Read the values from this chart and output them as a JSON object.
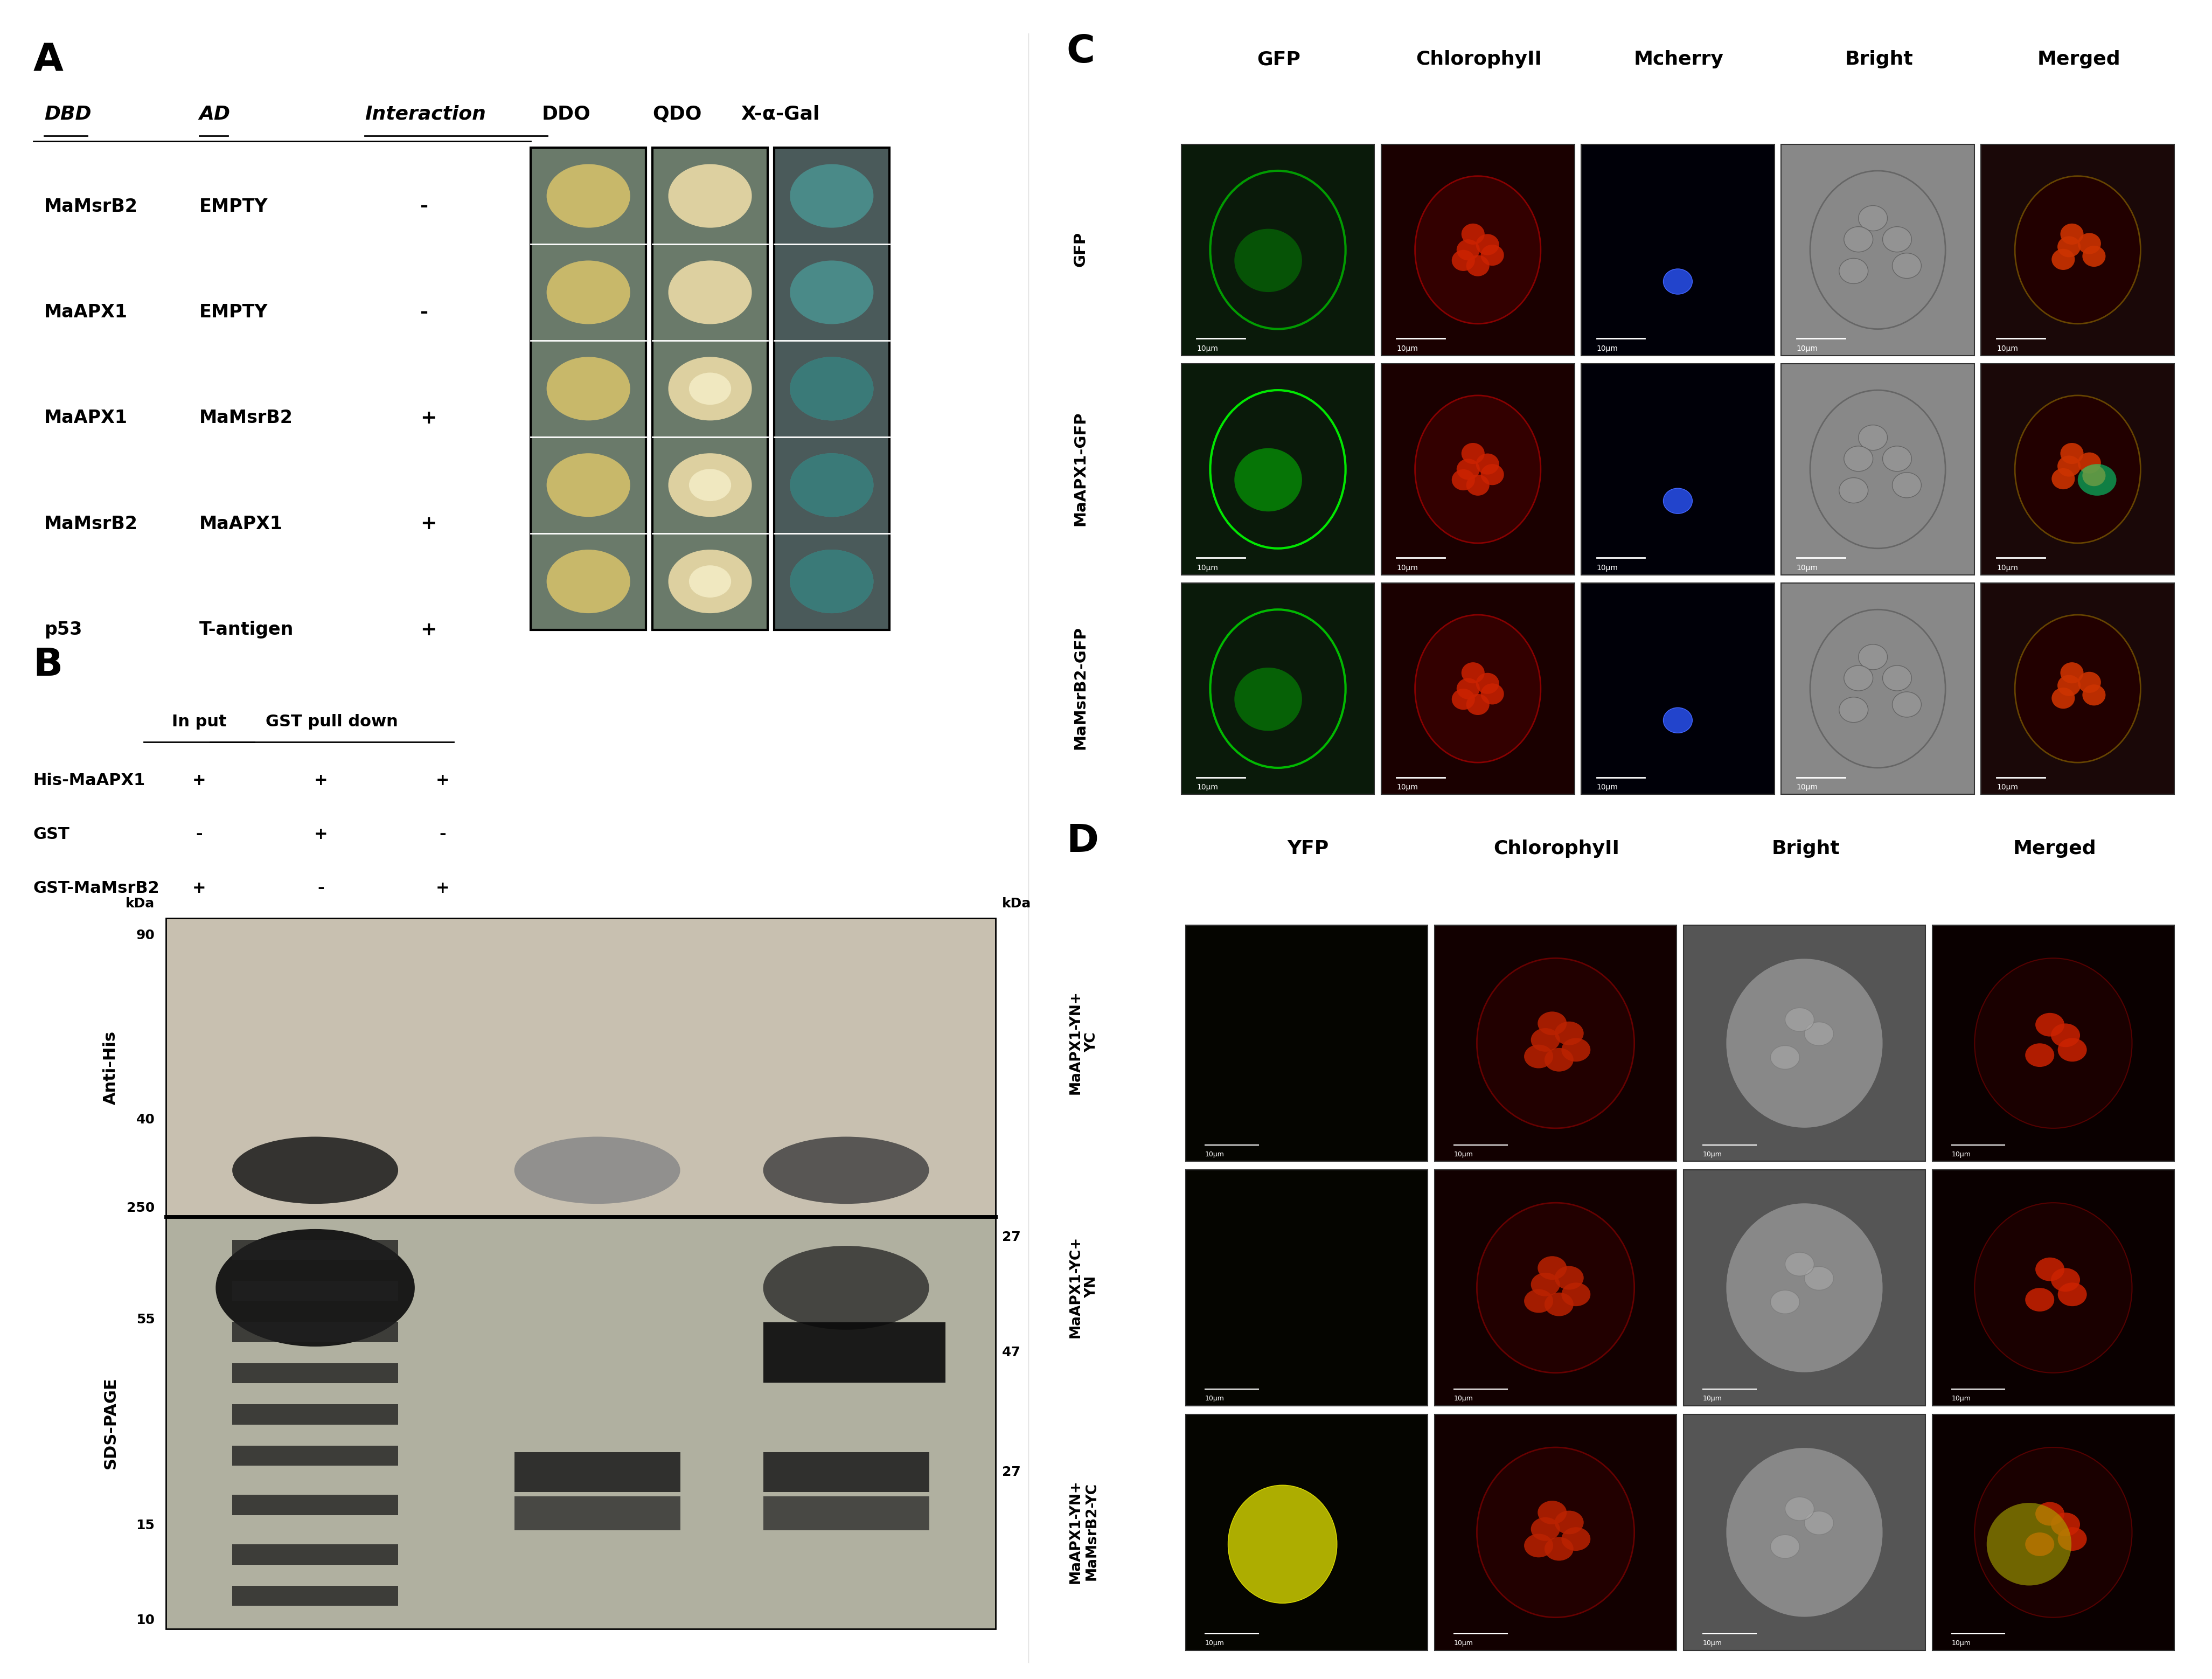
{
  "title_A": "A",
  "title_B": "B",
  "title_C": "C",
  "title_D": "D",
  "panel_A": {
    "header": [
      "DBD",
      "AD",
      "Interaction",
      "DDO",
      "QDO",
      "X-α-Gal"
    ],
    "rows": [
      [
        "MaMsrB2",
        "EMPTY",
        "-"
      ],
      [
        "MaAPX1",
        "EMPTY",
        "-"
      ],
      [
        "MaAPX1",
        "MaMsrB2",
        "+"
      ],
      [
        "MaMsrB2",
        "MaAPX1",
        "+"
      ],
      [
        "p53",
        "T-antigen",
        "+"
      ]
    ]
  },
  "panel_B": {
    "header_input": "In put",
    "header_gst": "GST pull down",
    "rows": [
      [
        "His-MaAPX1",
        "+",
        "+",
        "+"
      ],
      [
        "GST",
        "-",
        "+",
        "-"
      ],
      [
        "GST-MaMsrB2",
        "+",
        "-",
        "+"
      ]
    ],
    "labels_left": [
      "Anti-His",
      "SDS-PAGE"
    ],
    "kda_labels_left": [
      "90",
      "40",
      "250",
      "55",
      "15",
      "10"
    ],
    "kda_labels_right": [
      "27",
      "47",
      "27"
    ]
  },
  "panel_C": {
    "col_headers": [
      "GFP",
      "ChlorophyII",
      "Mcherry",
      "Bright",
      "Merged"
    ],
    "row_headers": [
      "GFP",
      "MaAPX1-GFP",
      "MaMsrB2-GFP"
    ]
  },
  "panel_D": {
    "col_headers": [
      "YFP",
      "ChlorophyII",
      "Bright",
      "Merged"
    ],
    "row_headers": [
      "MaAPX1-YN+\nYC",
      "MaAPX1-YC+\nYN",
      "MaAPX1-YN+\nMaMsrB2-YC"
    ]
  },
  "bg_color": "#ffffff",
  "text_color": "#000000",
  "gray_bg": "#7a8a7a",
  "colony_color_ddo": "#d4c87a",
  "colony_color_qdo": "#e8dca0",
  "colony_color_xgal": "#5fa8a0"
}
